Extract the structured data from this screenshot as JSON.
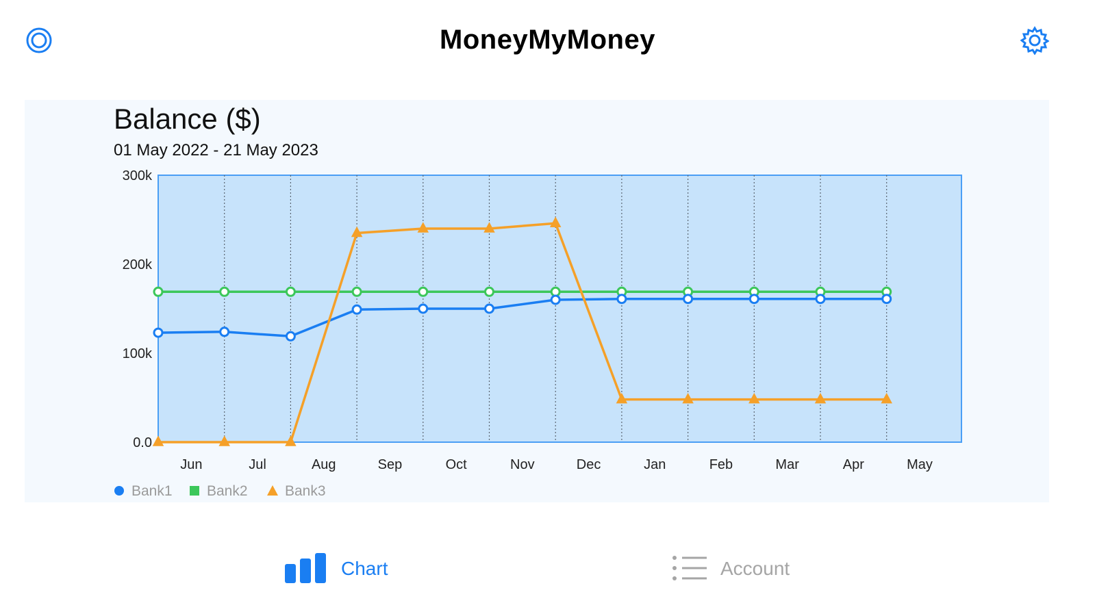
{
  "header": {
    "title": "MoneyMyMoney",
    "left_icon": "target-icon",
    "right_icon": "gear-icon"
  },
  "chart_data": {
    "type": "line",
    "title": "Balance  ($)",
    "subtitle": "01 May 2022 - 21 May 2023",
    "categories": [
      "Jun",
      "Jul",
      "Aug",
      "Sep",
      "Oct",
      "Nov",
      "Dec",
      "Jan",
      "Feb",
      "Mar",
      "Apr",
      "May"
    ],
    "y_ticks": [
      "0.0",
      "100k",
      "200k",
      "300k"
    ],
    "ylim": [
      0,
      300000
    ],
    "grid": "vertical dotted",
    "legend_position": "bottom-left",
    "series": [
      {
        "name": "Bank1",
        "color": "#1a7ef2",
        "marker": "circle",
        "x": [
          0,
          1,
          2,
          3,
          4,
          5,
          6,
          7,
          8,
          9,
          10,
          11
        ],
        "values": [
          123000,
          124000,
          119000,
          149000,
          150000,
          150000,
          160000,
          161000,
          161000,
          161000,
          161000,
          161000
        ]
      },
      {
        "name": "Bank2",
        "color": "#3cc75a",
        "marker": "square",
        "x": [
          0,
          1,
          2,
          3,
          4,
          5,
          6,
          7,
          8,
          9,
          10,
          11
        ],
        "values": [
          169000,
          169000,
          169000,
          169000,
          169000,
          169000,
          169000,
          169000,
          169000,
          169000,
          169000,
          169000
        ]
      },
      {
        "name": "Bank3",
        "color": "#f5a028",
        "marker": "triangle",
        "x": [
          0,
          1,
          2,
          3,
          4,
          5,
          6,
          7,
          8,
          9,
          10,
          11
        ],
        "values": [
          0,
          0,
          0,
          235000,
          240000,
          240000,
          246000,
          48000,
          48000,
          48000,
          48000,
          48000
        ]
      }
    ]
  },
  "tabs": [
    {
      "label": "Chart",
      "icon": "bar-chart-icon",
      "active": true,
      "color": "#1a7ef2"
    },
    {
      "label": "Account",
      "icon": "list-icon",
      "active": false,
      "color": "#a5a5a5"
    }
  ]
}
